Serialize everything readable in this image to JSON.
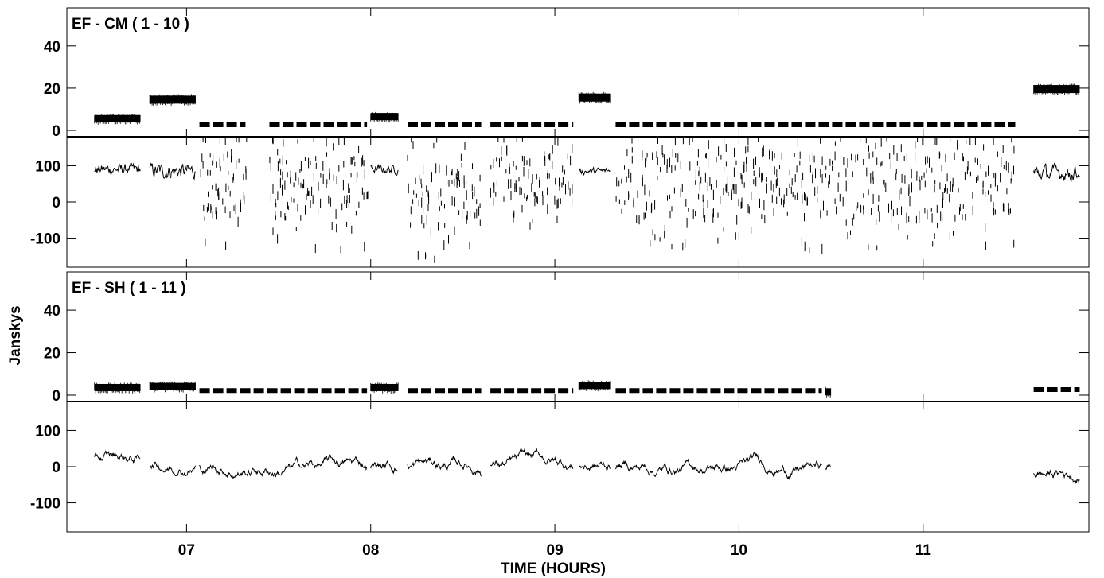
{
  "chart_data": {
    "type": "line",
    "xlabel": "TIME (HOURS)",
    "ylabel": "Janskys",
    "xlim": [
      6.35,
      11.9
    ],
    "x_ticks": [
      7,
      8,
      9,
      10,
      11
    ],
    "x_tick_labels": [
      "07",
      "08",
      "09",
      "10",
      "11"
    ],
    "panels": [
      {
        "title": "EF - CM ( 1 - 10 )",
        "amplitude": {
          "ylim": [
            -3,
            58
          ],
          "y_ticks": [
            0,
            20,
            40
          ],
          "y_tick_labels": [
            "0",
            "20",
            "40"
          ],
          "segments": [
            {
              "x": [
                6.5,
                6.75
              ],
              "y": 5
            },
            {
              "x": [
                6.8,
                7.05
              ],
              "y": 14
            },
            {
              "x": [
                7.07,
                7.32
              ],
              "y": 1.5
            },
            {
              "x": [
                7.45,
                7.98
              ],
              "y": 1.5
            },
            {
              "x": [
                8.0,
                8.15
              ],
              "y": 6
            },
            {
              "x": [
                8.2,
                8.6
              ],
              "y": 1.5
            },
            {
              "x": [
                8.65,
                9.1
              ],
              "y": 1.5
            },
            {
              "x": [
                9.13,
                9.3
              ],
              "y": 15
            },
            {
              "x": [
                9.33,
                11.5
              ],
              "y": 1.5
            },
            {
              "x": [
                11.6,
                11.85
              ],
              "y": 19
            }
          ]
        },
        "phase": {
          "ylim": [
            -180,
            180
          ],
          "y_ticks": [
            -100,
            0,
            100
          ],
          "y_tick_labels": [
            "-100",
            "0",
            "100"
          ],
          "segments": [
            {
              "x": [
                6.5,
                6.75
              ],
              "center": 90,
              "spread": 25,
              "style": "dense"
            },
            {
              "x": [
                6.8,
                7.05
              ],
              "center": 85,
              "spread": 35,
              "style": "dense"
            },
            {
              "x": [
                7.07,
                7.32
              ],
              "center": 60,
              "spread": 180,
              "style": "sparse"
            },
            {
              "x": [
                7.45,
                7.98
              ],
              "center": 50,
              "spread": 180,
              "style": "sparse"
            },
            {
              "x": [
                8.0,
                8.15
              ],
              "center": 90,
              "spread": 20,
              "style": "dense"
            },
            {
              "x": [
                8.2,
                8.6
              ],
              "center": 20,
              "spread": 180,
              "style": "sparse"
            },
            {
              "x": [
                8.65,
                9.1
              ],
              "center": 70,
              "spread": 130,
              "style": "sparse"
            },
            {
              "x": [
                9.13,
                9.3
              ],
              "center": 85,
              "spread": 15,
              "style": "dense"
            },
            {
              "x": [
                9.33,
                11.5
              ],
              "center": 50,
              "spread": 180,
              "style": "sparse"
            },
            {
              "x": [
                11.6,
                11.85
              ],
              "center": 80,
              "spread": 35,
              "style": "dense"
            }
          ]
        }
      },
      {
        "title": "EF - SH ( 1 - 11 )",
        "amplitude": {
          "ylim": [
            -3,
            58
          ],
          "y_ticks": [
            0,
            20,
            40
          ],
          "y_tick_labels": [
            "0",
            "20",
            "40"
          ],
          "segments": [
            {
              "x": [
                6.5,
                6.75
              ],
              "y": 3
            },
            {
              "x": [
                6.8,
                7.05
              ],
              "y": 3.5
            },
            {
              "x": [
                7.07,
                7.98
              ],
              "y": 1
            },
            {
              "x": [
                8.0,
                8.15
              ],
              "y": 3
            },
            {
              "x": [
                8.2,
                8.6
              ],
              "y": 1
            },
            {
              "x": [
                8.65,
                9.1
              ],
              "y": 1
            },
            {
              "x": [
                9.13,
                9.3
              ],
              "y": 4
            },
            {
              "x": [
                9.33,
                10.45
              ],
              "y": 1
            },
            {
              "x": [
                10.47,
                10.5
              ],
              "y": 1
            },
            {
              "x": [
                11.6,
                11.85
              ],
              "y": 1.5
            }
          ]
        },
        "phase": {
          "ylim": [
            -180,
            180
          ],
          "y_ticks": [
            -100,
            0,
            100
          ],
          "y_tick_labels": [
            "-100",
            "0",
            "100"
          ],
          "segments": [
            {
              "x": [
                6.5,
                6.75
              ],
              "center": 20,
              "spread": 90,
              "style": "wander"
            },
            {
              "x": [
                6.8,
                7.05
              ],
              "center": 10,
              "spread": 35,
              "style": "wander"
            },
            {
              "x": [
                7.07,
                7.98
              ],
              "center": 0,
              "spread": 170,
              "style": "wander"
            },
            {
              "x": [
                8.0,
                8.15
              ],
              "center": 0,
              "spread": 60,
              "style": "wander"
            },
            {
              "x": [
                8.2,
                8.6
              ],
              "center": 0,
              "spread": 170,
              "style": "wander"
            },
            {
              "x": [
                8.65,
                9.1
              ],
              "center": 0,
              "spread": 110,
              "style": "wander"
            },
            {
              "x": [
                9.13,
                9.3
              ],
              "center": 0,
              "spread": 30,
              "style": "wander"
            },
            {
              "x": [
                9.33,
                10.45
              ],
              "center": 0,
              "spread": 170,
              "style": "wander"
            },
            {
              "x": [
                10.47,
                10.5
              ],
              "center": 0,
              "spread": 40,
              "style": "wander"
            },
            {
              "x": [
                11.6,
                11.85
              ],
              "center": -20,
              "spread": 35,
              "style": "wander"
            }
          ]
        }
      }
    ]
  }
}
